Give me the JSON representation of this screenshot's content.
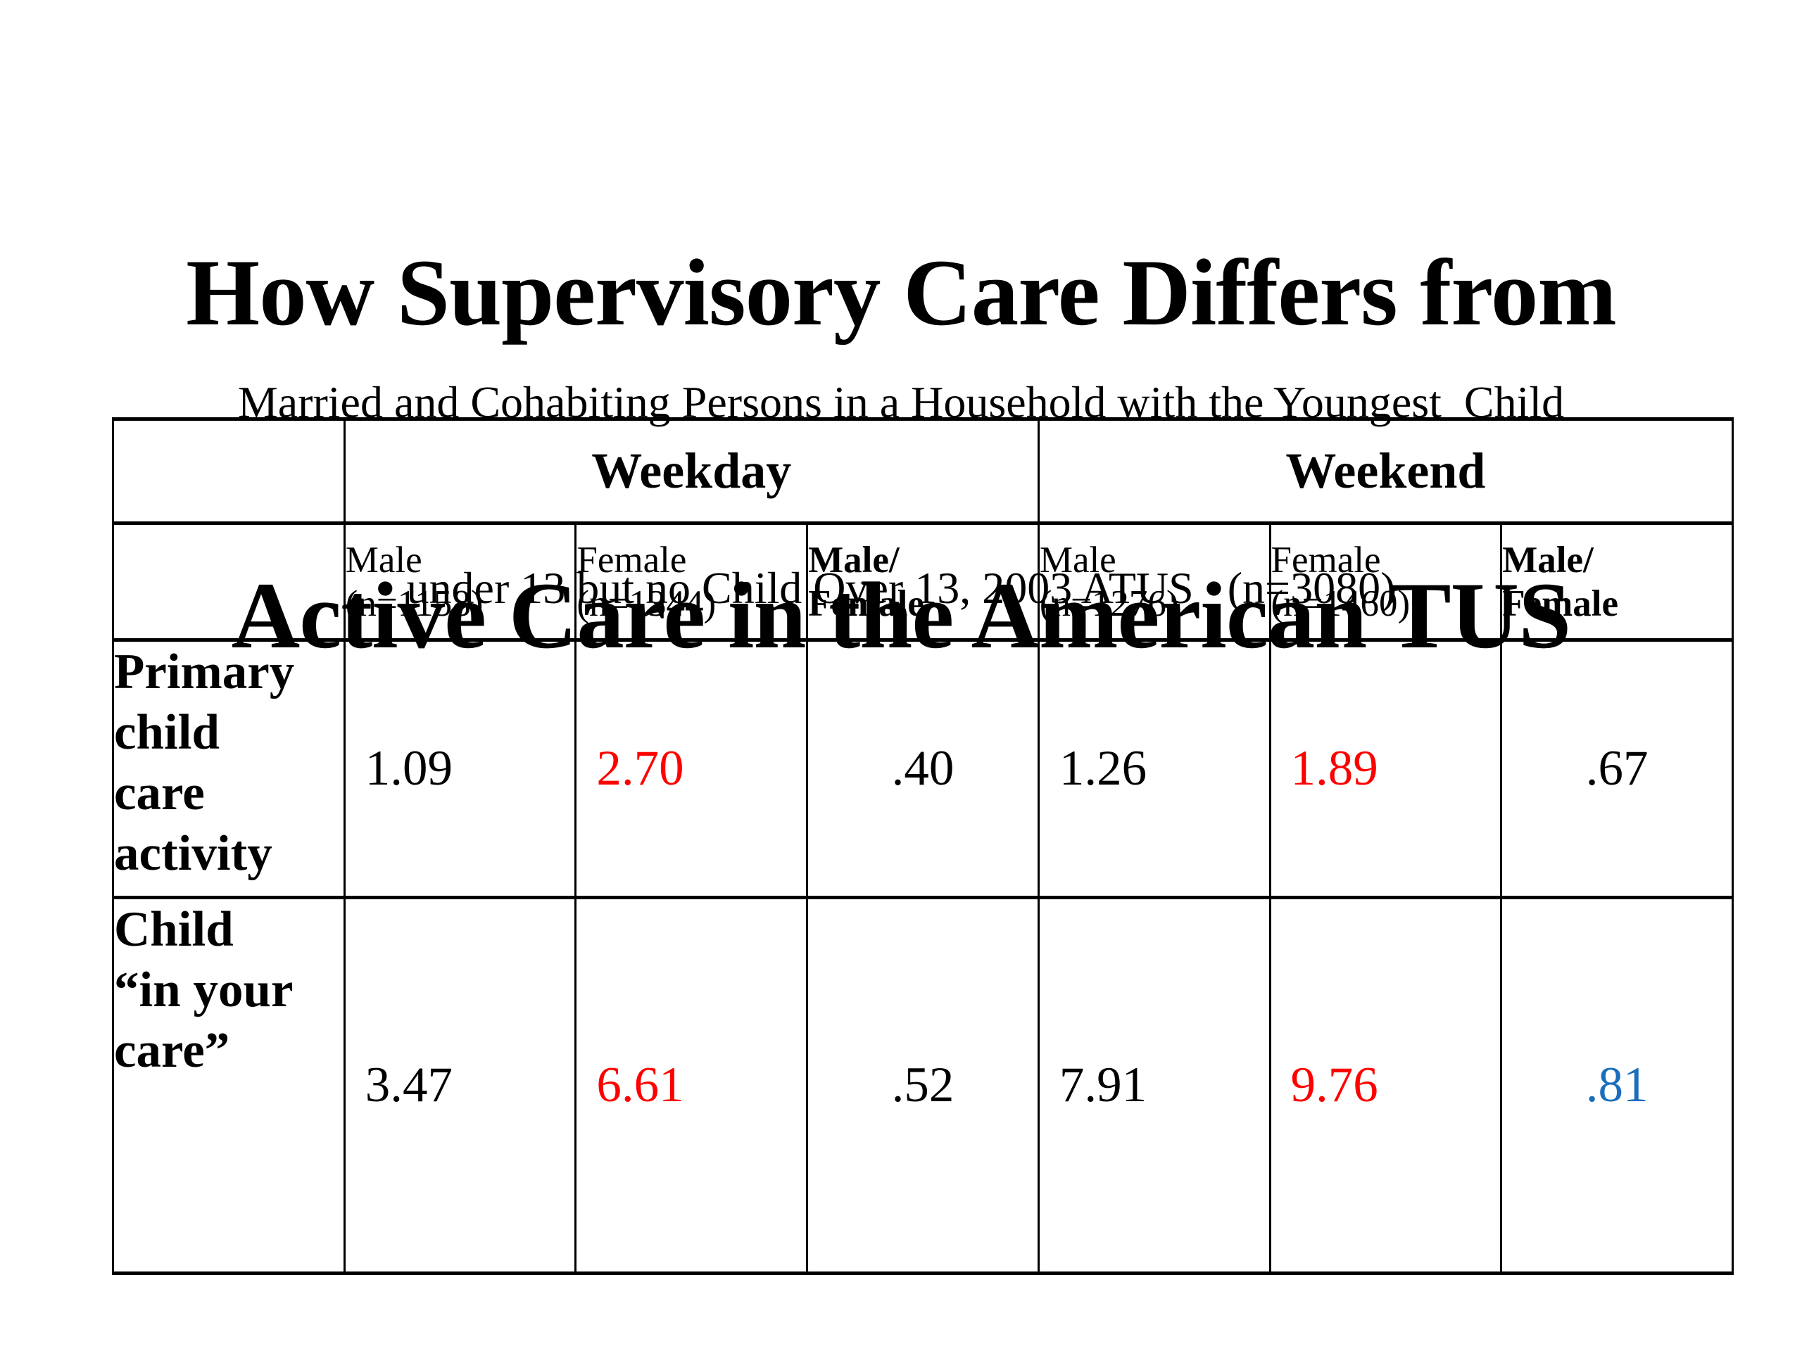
{
  "slide": {
    "title_line1": "How Supervisory Care Differs from",
    "title_line2": "Active Care in the American TUS",
    "subtitle_line1": "Married and Cohabiting Persons in a Household with the Youngest  Child",
    "subtitle_line2": "under 13 but no Child Over 13, 2003 ATUS   (n=3080)"
  },
  "colors": {
    "black": "#000000",
    "red": "#FF0000",
    "blue": "#1B6EBC"
  },
  "chart_data": {
    "type": "table",
    "title": "How Supervisory Care Differs from Active Care in the American TUS",
    "subtitle": "Married and Cohabiting Persons in a Household with the Youngest Child under 13 but no Child Over 13, 2003 ATUS (n=3080)",
    "n_total": "n=3080",
    "column_groups": [
      {
        "label": "Weekday",
        "span": 3
      },
      {
        "label": "Weekend",
        "span": 3
      }
    ],
    "columns": [
      {
        "line1": "Male",
        "line2": "(n=1158)",
        "bold": false,
        "group": "Weekday"
      },
      {
        "line1": "Female",
        "line2": "(n=1344)",
        "bold": false,
        "group": "Weekday"
      },
      {
        "line1": "Male/",
        "line2": "Female",
        "bold": true,
        "group": "Weekday"
      },
      {
        "line1": "Male",
        "line2": "(n=1276)",
        "bold": false,
        "group": "Weekend"
      },
      {
        "line1": "Female",
        "line2": "(n=1460)",
        "bold": false,
        "group": "Weekend"
      },
      {
        "line1": "Male/",
        "line2": "Female",
        "bold": true,
        "group": "Weekend"
      }
    ],
    "rows": [
      {
        "label": "Primary child care activity",
        "label_lines": [
          "Primary",
          "child",
          "care",
          "activity"
        ],
        "values": [
          {
            "text": "1.09",
            "color": "black",
            "align": "left"
          },
          {
            "text": "2.70",
            "color": "red",
            "align": "left"
          },
          {
            "text": ".40",
            "color": "black",
            "align": "center"
          },
          {
            "text": "1.26",
            "color": "black",
            "align": "left"
          },
          {
            "text": "1.89",
            "color": "red",
            "align": "left"
          },
          {
            "text": ".67",
            "color": "black",
            "align": "center"
          }
        ]
      },
      {
        "label": "Child “in your care”",
        "label_lines": [
          "Child",
          "“in your",
          "care”"
        ],
        "values": [
          {
            "text": "3.47",
            "color": "black",
            "align": "left"
          },
          {
            "text": "6.61",
            "color": "red",
            "align": "left"
          },
          {
            "text": ".52",
            "color": "black",
            "align": "center"
          },
          {
            "text": "7.91",
            "color": "black",
            "align": "left"
          },
          {
            "text": "9.76",
            "color": "red",
            "align": "left"
          },
          {
            "text": ".81",
            "color": "blue",
            "align": "center"
          }
        ]
      }
    ]
  }
}
